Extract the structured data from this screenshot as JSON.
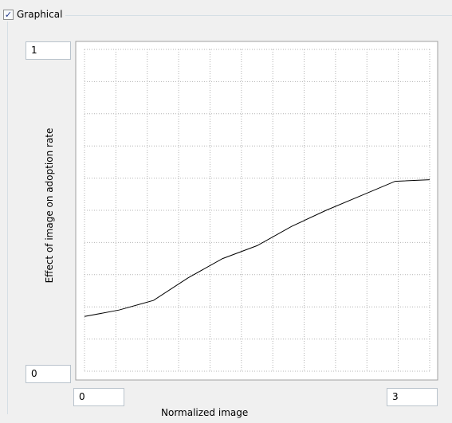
{
  "group": {
    "checkbox_label": "Graphical",
    "checked": true,
    "check_glyph": "✓"
  },
  "y_axis": {
    "max_value": "1",
    "min_value": "0",
    "label": "Effect of image on adoption rate"
  },
  "x_axis": {
    "min_value": "0",
    "max_value": "3",
    "label": "Normalized image"
  },
  "chart_data": {
    "type": "line",
    "xlabel": "Normalized image",
    "ylabel": "Effect of image on adoption rate",
    "xlim": [
      0,
      3
    ],
    "ylim": [
      0,
      1
    ],
    "grid": true,
    "x": [
      0,
      0.3,
      0.6,
      0.9,
      1.2,
      1.5,
      1.8,
      2.1,
      2.4,
      2.7,
      3.0
    ],
    "y": [
      0.17,
      0.19,
      0.22,
      0.29,
      0.35,
      0.39,
      0.45,
      0.5,
      0.545,
      0.59,
      0.595
    ],
    "line_color": "#000000",
    "grid_color": "#b4b4b4"
  }
}
